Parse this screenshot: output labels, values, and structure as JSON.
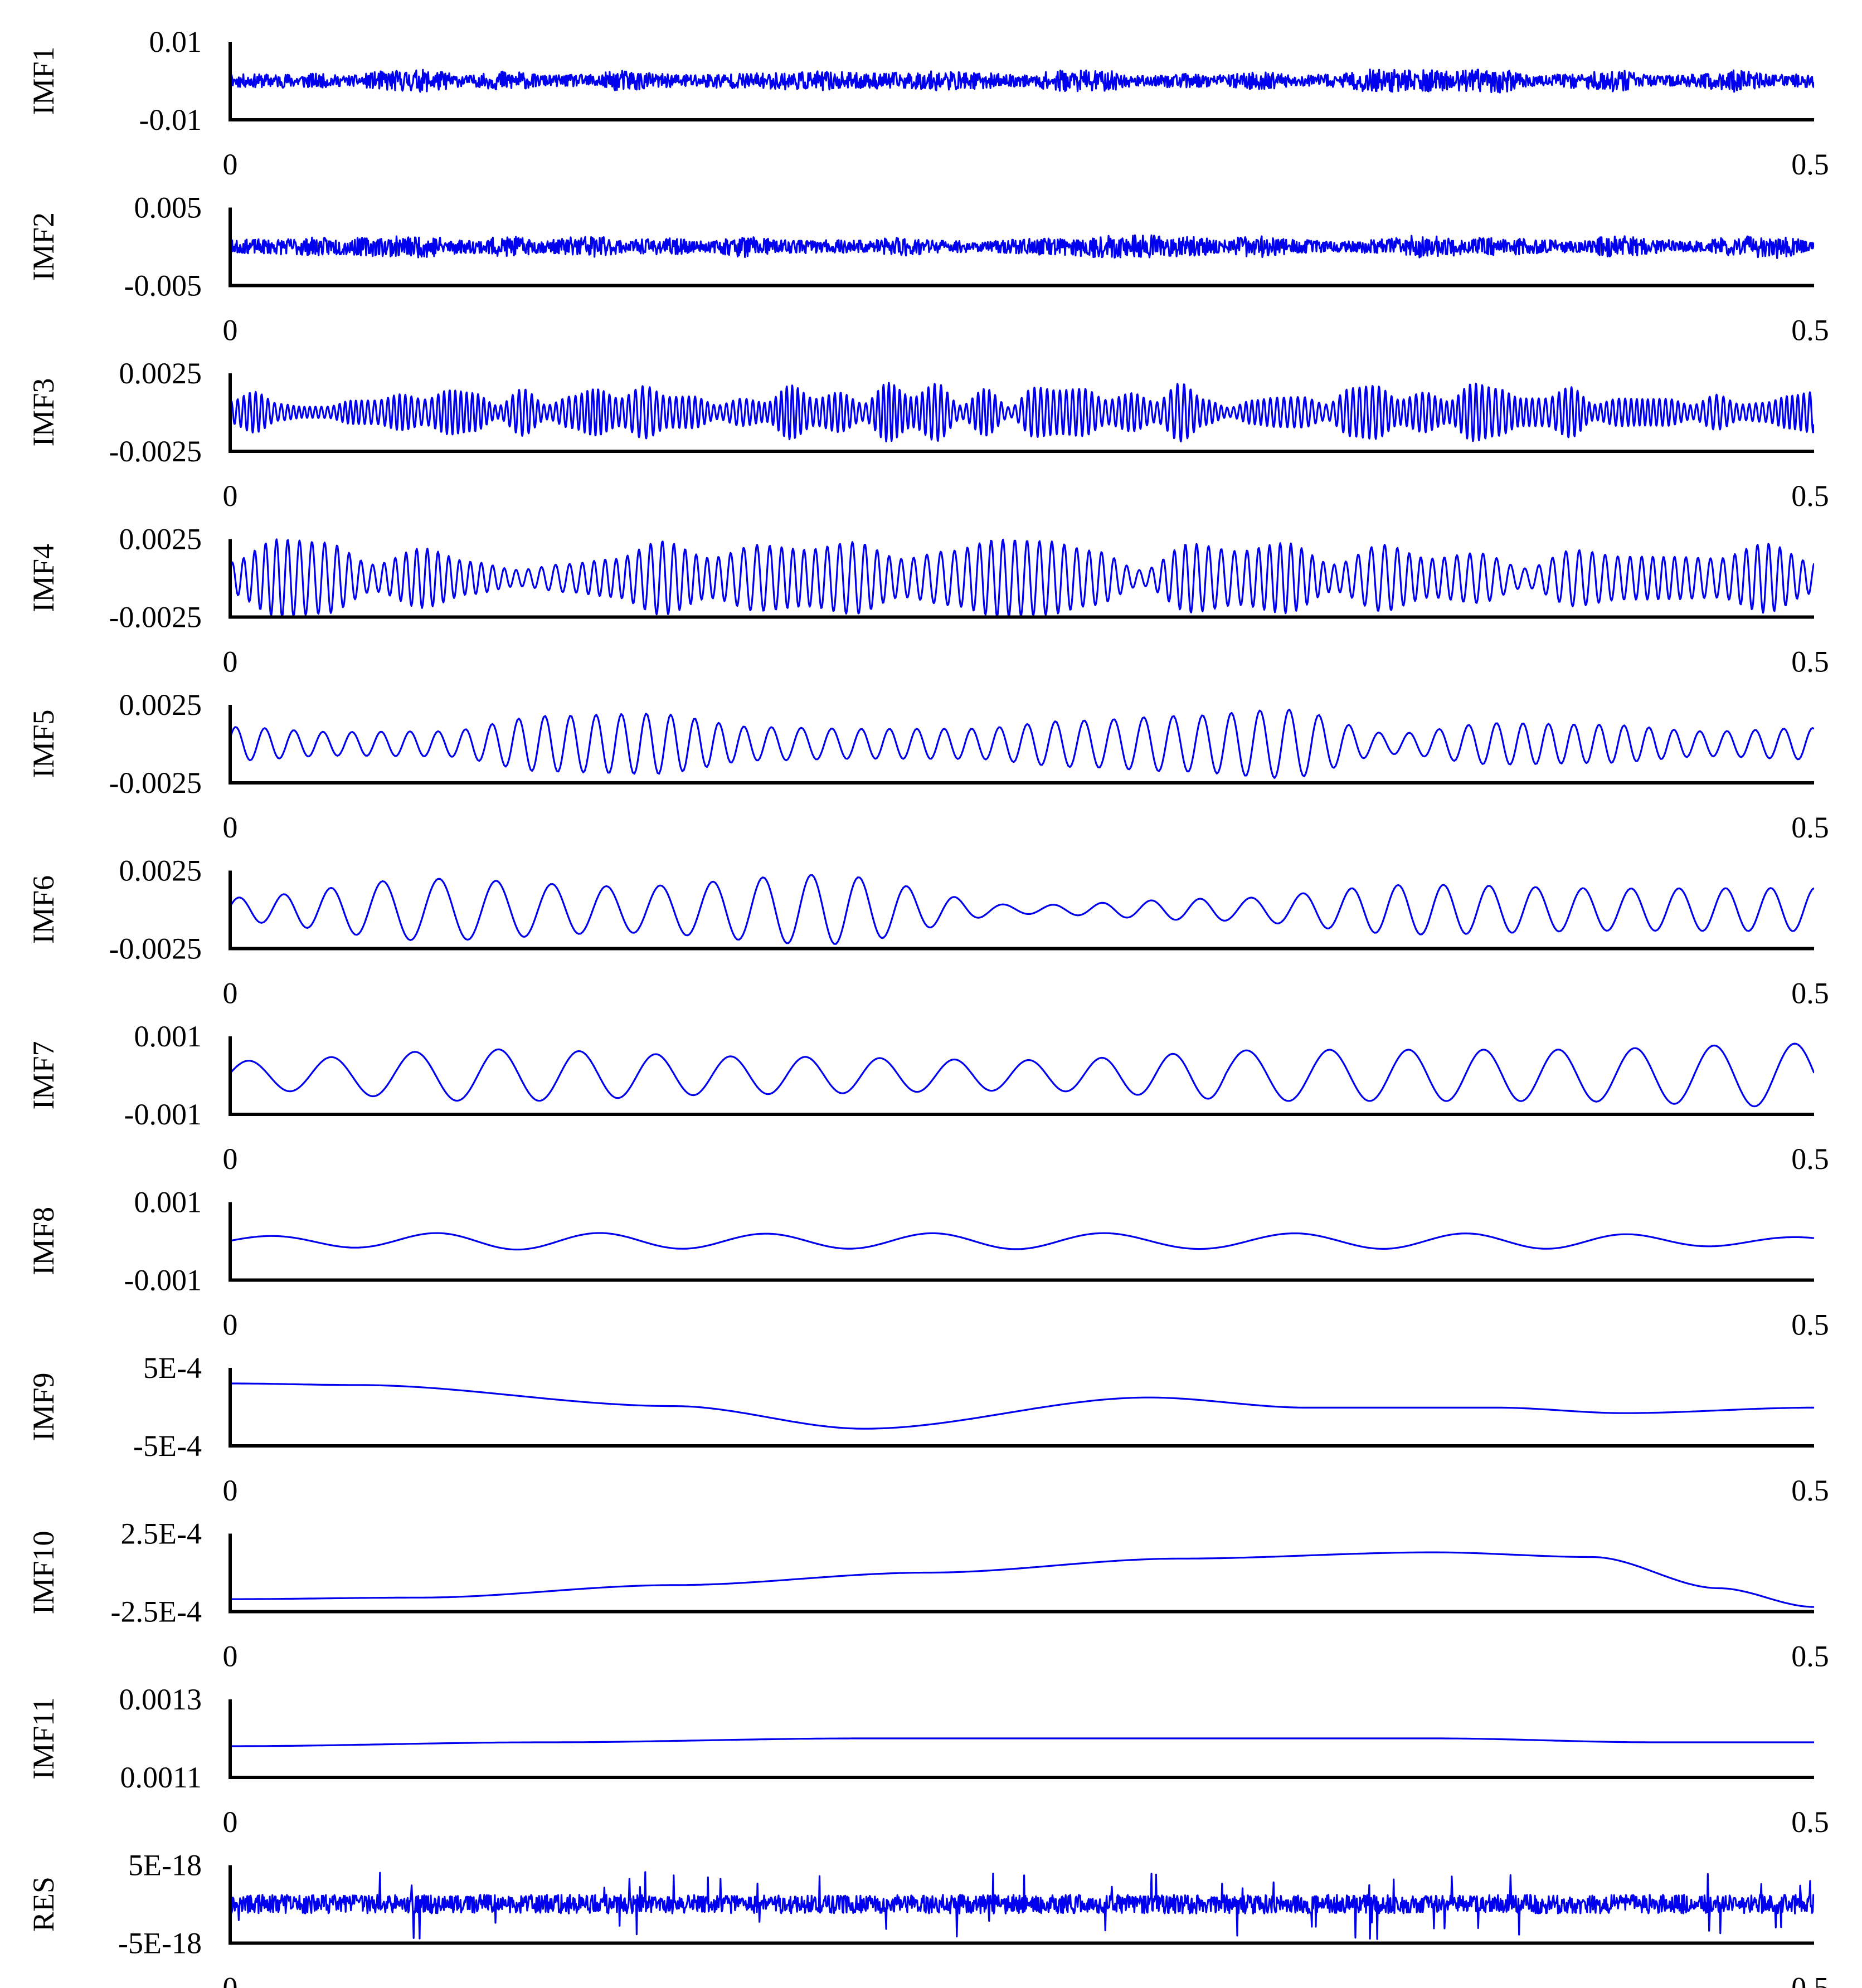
{
  "line_color": "#0000ee",
  "axis_color": "#000000",
  "chart_data": [
    {
      "type": "line",
      "ylabel": "IMF1",
      "ytick_top": "0.01",
      "ytick_bottom": "-0.01",
      "xtick_left": "0",
      "xtick_right": "0.5",
      "ylim": [
        -0.01,
        0.01
      ],
      "xlim": [
        0,
        0.5
      ],
      "signal": {
        "kind": "noise",
        "center": 0.0,
        "amp": 0.0022,
        "seed": 11
      }
    },
    {
      "type": "line",
      "ylabel": "IMF2",
      "ytick_top": "0.005",
      "ytick_bottom": "-0.005",
      "xtick_left": "0",
      "xtick_right": "0.5",
      "ylim": [
        -0.005,
        0.005
      ],
      "xlim": [
        0,
        0.5
      ],
      "signal": {
        "kind": "noise",
        "center": 0.0,
        "amp": 0.0011,
        "seed": 23
      }
    },
    {
      "type": "line",
      "ylabel": "IMF3",
      "ytick_top": "0.0025",
      "ytick_bottom": "-0.0025",
      "xtick_left": "0",
      "xtick_right": "0.5",
      "ylim": [
        -0.0025,
        0.0025
      ],
      "xlim": [
        0,
        0.5
      ],
      "signal": {
        "kind": "osc",
        "center": 0.0,
        "cycles": 260,
        "amp_min": 0.0003,
        "amp_max": 0.0019,
        "seed": 37
      }
    },
    {
      "type": "line",
      "ylabel": "IMF4",
      "ytick_top": "0.0025",
      "ytick_bottom": "-0.0025",
      "xtick_left": "0",
      "xtick_right": "0.5",
      "ylim": [
        -0.0025,
        0.0025
      ],
      "xlim": [
        0,
        0.5
      ],
      "signal": {
        "kind": "osc",
        "center": 0.0,
        "cycles": 130,
        "amp_min": 0.0005,
        "amp_max": 0.0025,
        "seed": 41
      }
    },
    {
      "type": "line",
      "ylabel": "IMF5",
      "ytick_top": "0.0025",
      "ytick_bottom": "-0.0025",
      "xtick_left": "0",
      "xtick_right": "0.5",
      "ylim": [
        -0.0025,
        0.0025
      ],
      "xlim": [
        0,
        0.5
      ],
      "signal": {
        "kind": "osc",
        "center": 0.0,
        "cycles": 60,
        "amp_min": 0.0006,
        "amp_max": 0.0025,
        "seed": 53
      }
    },
    {
      "type": "line",
      "ylabel": "IMF6",
      "ytick_top": "0.0025",
      "ytick_bottom": "-0.0025",
      "xtick_left": "0",
      "xtick_right": "0.5",
      "ylim": [
        -0.0025,
        0.0025
      ],
      "xlim": [
        0,
        0.5
      ],
      "signal": {
        "kind": "osc",
        "center": 0.0,
        "cycles": 32,
        "amp_min": 0.0002,
        "amp_max": 0.0024,
        "seed": 61
      }
    },
    {
      "type": "line",
      "ylabel": "IMF7",
      "ytick_top": "0.001",
      "ytick_bottom": "-0.001",
      "xtick_left": "0",
      "xtick_right": "0.5",
      "ylim": [
        -0.001,
        0.001
      ],
      "xlim": [
        0,
        0.5
      ],
      "signal": {
        "kind": "osc",
        "center": 0.0,
        "cycles": 20,
        "amp_min": 0.0002,
        "amp_max": 0.00085,
        "seed": 71
      }
    },
    {
      "type": "line",
      "ylabel": "IMF8",
      "ytick_top": "0.001",
      "ytick_bottom": "-0.001",
      "xtick_left": "0",
      "xtick_right": "0.5",
      "ylim": [
        -0.001,
        0.001
      ],
      "xlim": [
        0,
        0.5
      ],
      "signal": {
        "kind": "osc",
        "center": 0.0,
        "cycles": 9,
        "amp_min": 8e-05,
        "amp_max": 0.00025,
        "seed": 83
      }
    },
    {
      "type": "line",
      "ylabel": "IMF9",
      "ytick_top": "5E-4",
      "ytick_bottom": "-5E-4",
      "xtick_left": "0",
      "xtick_right": "0.5",
      "ylim": [
        -0.0005,
        0.0005
      ],
      "xlim": [
        0,
        0.5
      ],
      "signal": {
        "kind": "points",
        "points": [
          [
            0,
            0.0003
          ],
          [
            0.04,
            0.00028
          ],
          [
            0.14,
            1e-05
          ],
          [
            0.2,
            -0.00028
          ],
          [
            0.29,
            0.00012
          ],
          [
            0.34,
            -1e-05
          ],
          [
            0.4,
            -1e-05
          ],
          [
            0.44,
            -8e-05
          ],
          [
            0.5,
            -1e-05
          ]
        ]
      }
    },
    {
      "type": "line",
      "ylabel": "IMF10",
      "ytick_top": "2.5E-4",
      "ytick_bottom": "-2.5E-4",
      "xtick_left": "0",
      "xtick_right": "0.5",
      "ylim": [
        -0.00025,
        0.00025
      ],
      "xlim": [
        0,
        0.5
      ],
      "signal": {
        "kind": "points",
        "points": [
          [
            0,
            -0.00017
          ],
          [
            0.06,
            -0.00016
          ],
          [
            0.14,
            -8e-05
          ],
          [
            0.22,
            0.0
          ],
          [
            0.3,
            9e-05
          ],
          [
            0.38,
            0.00013
          ],
          [
            0.43,
            0.0001
          ],
          [
            0.47,
            -0.0001
          ],
          [
            0.5,
            -0.00022
          ]
        ]
      }
    },
    {
      "type": "line",
      "ylabel": "IMF11",
      "ytick_top": "0.0013",
      "ytick_bottom": "0.0011",
      "xtick_left": "0",
      "xtick_right": "0.5",
      "ylim": [
        0.0011,
        0.0013
      ],
      "xlim": [
        0,
        0.5
      ],
      "signal": {
        "kind": "points",
        "points": [
          [
            0,
            0.00118
          ],
          [
            0.1,
            0.00119
          ],
          [
            0.2,
            0.0012
          ],
          [
            0.3,
            0.0012
          ],
          [
            0.38,
            0.0012
          ],
          [
            0.45,
            0.00119
          ],
          [
            0.5,
            0.00119
          ]
        ]
      }
    },
    {
      "type": "line",
      "ylabel": "RES",
      "ytick_top": "5E-18",
      "ytick_bottom": "-5E-18",
      "xtick_left": "0",
      "xtick_right": "0.5",
      "ylim": [
        -5e-18,
        5e-18
      ],
      "xlim": [
        0,
        0.5
      ],
      "signal": {
        "kind": "spiky",
        "center": 0.0,
        "amp": 1.2e-18,
        "spike": 4.5e-18,
        "seed": 97
      }
    }
  ]
}
